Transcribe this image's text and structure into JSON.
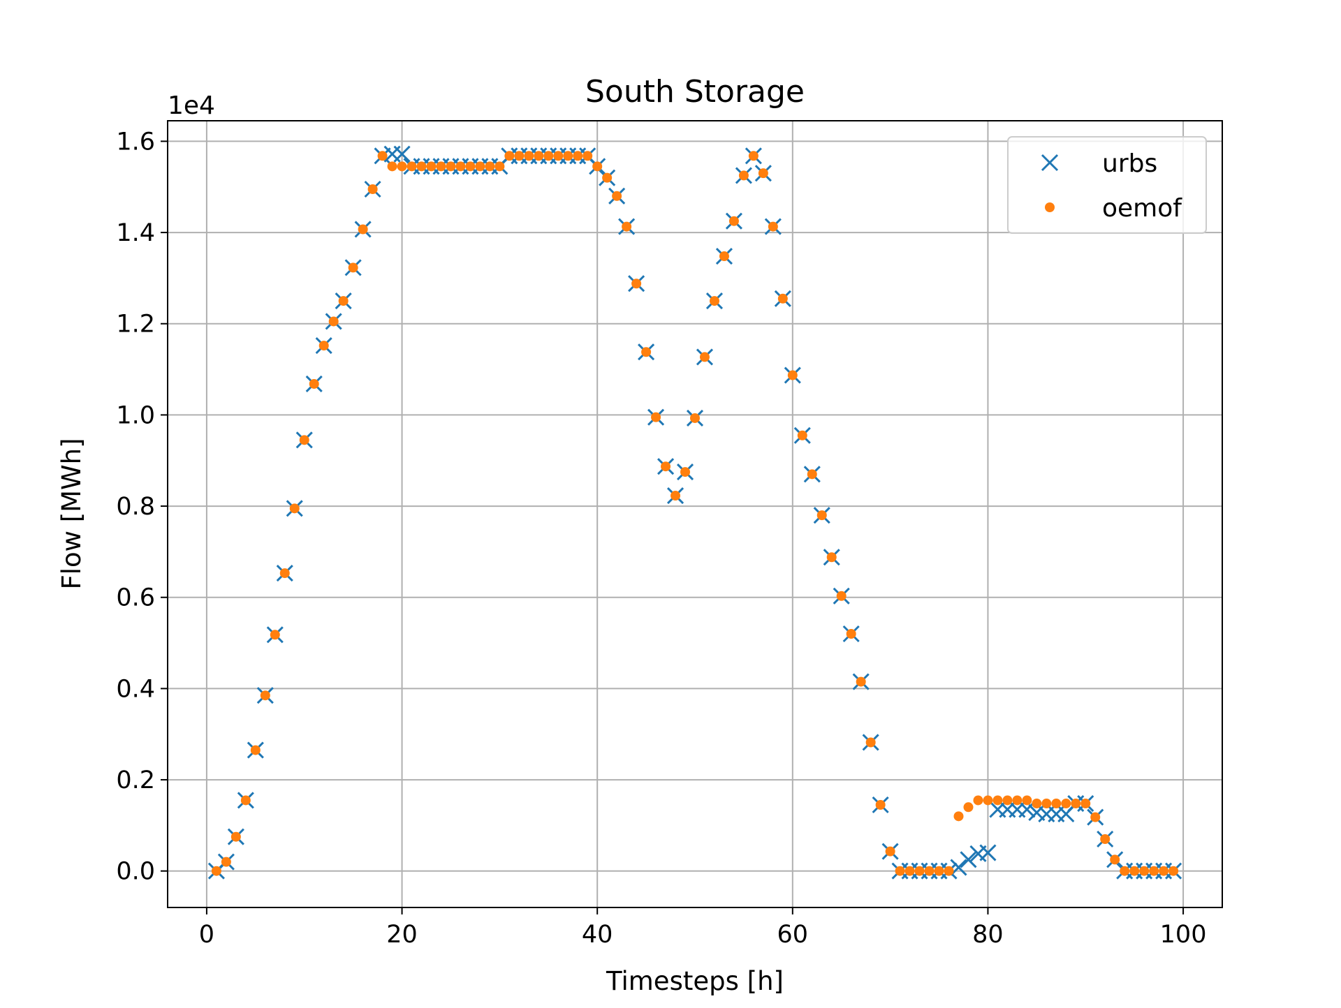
{
  "chart_data": {
    "type": "scatter",
    "title": "South Storage",
    "xlabel": "Timesteps [h]",
    "ylabel": "Flow [MWh]",
    "y_multiplier_label": "1e4",
    "xlim": [
      -4,
      104
    ],
    "ylim": [
      -0.08,
      1.645
    ],
    "x_ticks": [
      0,
      20,
      40,
      60,
      80,
      100
    ],
    "x_tick_labels": [
      "0",
      "20",
      "40",
      "60",
      "80",
      "100"
    ],
    "y_ticks": [
      0.0,
      0.2,
      0.4,
      0.6,
      0.8,
      1.0,
      1.2,
      1.4,
      1.6
    ],
    "y_tick_labels": [
      "0.0",
      "0.2",
      "0.4",
      "0.6",
      "0.8",
      "1.0",
      "1.2",
      "1.4",
      "1.6"
    ],
    "grid": true,
    "legend_position": "top-right",
    "series": [
      {
        "name": "urbs",
        "marker": "x",
        "color": "#1f77b4",
        "x": [
          1,
          2,
          3,
          4,
          5,
          6,
          7,
          8,
          9,
          10,
          11,
          12,
          13,
          14,
          15,
          16,
          17,
          18,
          19,
          20,
          21,
          22,
          23,
          24,
          25,
          26,
          27,
          28,
          29,
          30,
          31,
          32,
          33,
          34,
          35,
          36,
          37,
          38,
          39,
          40,
          41,
          42,
          43,
          44,
          45,
          46,
          47,
          48,
          49,
          50,
          51,
          52,
          53,
          54,
          55,
          56,
          57,
          58,
          59,
          60,
          61,
          62,
          63,
          64,
          65,
          66,
          67,
          68,
          69,
          70,
          71,
          72,
          73,
          74,
          75,
          76,
          77,
          78,
          79,
          80,
          81,
          82,
          83,
          84,
          85,
          86,
          87,
          88,
          89,
          90,
          91,
          92,
          93,
          94,
          95,
          96,
          97,
          98,
          99
        ],
        "y": [
          0.0,
          0.02,
          0.075,
          0.155,
          0.265,
          0.385,
          0.518,
          0.653,
          0.795,
          0.945,
          1.068,
          1.152,
          1.205,
          1.25,
          1.323,
          1.407,
          1.495,
          1.568,
          1.572,
          1.572,
          1.545,
          1.545,
          1.545,
          1.545,
          1.545,
          1.545,
          1.545,
          1.545,
          1.545,
          1.545,
          1.568,
          1.568,
          1.568,
          1.568,
          1.568,
          1.568,
          1.568,
          1.568,
          1.568,
          1.545,
          1.52,
          1.48,
          1.413,
          1.288,
          1.138,
          0.995,
          0.887,
          0.823,
          0.875,
          0.993,
          1.127,
          1.25,
          1.348,
          1.425,
          1.525,
          1.568,
          1.53,
          1.413,
          1.255,
          1.087,
          0.955,
          0.87,
          0.78,
          0.688,
          0.603,
          0.52,
          0.415,
          0.282,
          0.145,
          0.043,
          0.0,
          0.0,
          0.0,
          0.0,
          0.0,
          0.0,
          0.008,
          0.025,
          0.038,
          0.04,
          0.135,
          0.135,
          0.135,
          0.135,
          0.128,
          0.125,
          0.125,
          0.125,
          0.148,
          0.148,
          0.118,
          0.07,
          0.025,
          0.0,
          0.0,
          0.0,
          0.0,
          0.0,
          0.0
        ]
      },
      {
        "name": "oemof",
        "marker": "o",
        "color": "#ff7f0e",
        "x": [
          1,
          2,
          3,
          4,
          5,
          6,
          7,
          8,
          9,
          10,
          11,
          12,
          13,
          14,
          15,
          16,
          17,
          18,
          19,
          20,
          21,
          22,
          23,
          24,
          25,
          26,
          27,
          28,
          29,
          30,
          31,
          32,
          33,
          34,
          35,
          36,
          37,
          38,
          39,
          40,
          41,
          42,
          43,
          44,
          45,
          46,
          47,
          48,
          49,
          50,
          51,
          52,
          53,
          54,
          55,
          56,
          57,
          58,
          59,
          60,
          61,
          62,
          63,
          64,
          65,
          66,
          67,
          68,
          69,
          70,
          71,
          72,
          73,
          74,
          75,
          76,
          77,
          78,
          79,
          80,
          81,
          82,
          83,
          84,
          85,
          86,
          87,
          88,
          89,
          90,
          91,
          92,
          93,
          94,
          95,
          96,
          97,
          98,
          99
        ],
        "y": [
          0.0,
          0.02,
          0.075,
          0.155,
          0.265,
          0.385,
          0.518,
          0.653,
          0.795,
          0.945,
          1.068,
          1.152,
          1.205,
          1.25,
          1.323,
          1.407,
          1.495,
          1.568,
          1.545,
          1.545,
          1.545,
          1.545,
          1.545,
          1.545,
          1.545,
          1.545,
          1.545,
          1.545,
          1.545,
          1.545,
          1.568,
          1.568,
          1.568,
          1.568,
          1.568,
          1.568,
          1.568,
          1.568,
          1.568,
          1.545,
          1.52,
          1.48,
          1.413,
          1.288,
          1.138,
          0.995,
          0.887,
          0.823,
          0.875,
          0.993,
          1.127,
          1.25,
          1.348,
          1.425,
          1.525,
          1.568,
          1.53,
          1.413,
          1.255,
          1.087,
          0.955,
          0.87,
          0.78,
          0.688,
          0.603,
          0.52,
          0.415,
          0.282,
          0.145,
          0.043,
          0.0,
          0.0,
          0.0,
          0.0,
          0.0,
          0.0,
          0.12,
          0.14,
          0.155,
          0.155,
          0.155,
          0.155,
          0.155,
          0.155,
          0.148,
          0.148,
          0.148,
          0.148,
          0.148,
          0.148,
          0.118,
          0.07,
          0.025,
          0.0,
          0.0,
          0.0,
          0.0,
          0.0,
          0.0
        ]
      }
    ]
  }
}
